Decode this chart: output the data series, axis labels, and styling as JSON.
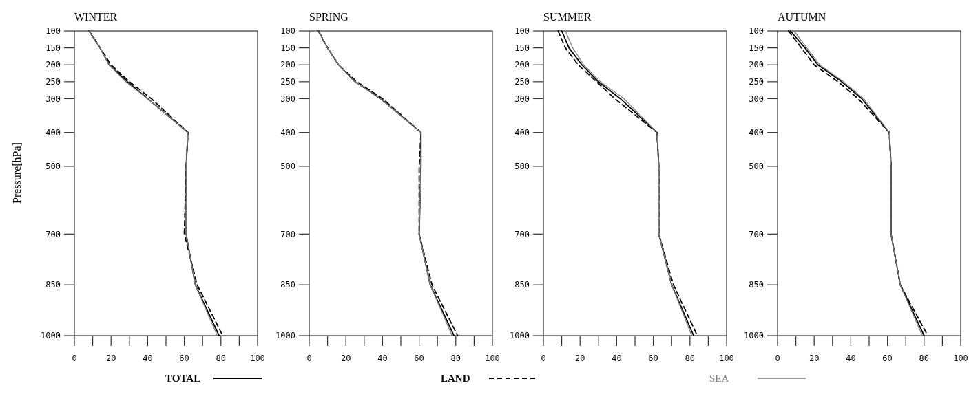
{
  "chart_data": [
    {
      "type": "line",
      "title": "WINTER",
      "ylabel": "Pressure[hPa]",
      "xlim": [
        0,
        100
      ],
      "ylim": [
        1000,
        100
      ],
      "xticks": [
        0,
        {
          "value": 10,
          "label": null
        },
        20,
        {
          "value": 30,
          "label": null
        },
        40,
        {
          "value": 50,
          "label": null
        },
        60,
        {
          "value": 70,
          "label": null
        },
        80,
        {
          "value": 90,
          "label": null
        },
        100
      ],
      "yticks": [
        100,
        150,
        200,
        250,
        300,
        400,
        500,
        700,
        850,
        1000
      ],
      "grid": false,
      "legend": "bottom",
      "marker": "none",
      "series": [
        {
          "name": "TOTAL",
          "color": "#000000",
          "line_style": "solid",
          "x": [
            8,
            14,
            19,
            29,
            40,
            62,
            61,
            61,
            66,
            79
          ],
          "values": [
            100,
            150,
            200,
            250,
            300,
            400,
            500,
            700,
            850,
            1000
          ]
        },
        {
          "name": "LAND",
          "color": "#000000",
          "line_style": "dashed",
          "x": [
            8,
            14,
            20,
            30,
            42,
            62,
            61,
            60,
            67,
            81
          ],
          "values": [
            100,
            150,
            200,
            250,
            300,
            400,
            500,
            700,
            850,
            1000
          ]
        },
        {
          "name": "SEA",
          "color": "#808080",
          "line_style": "solid",
          "x": [
            8,
            14,
            19,
            28,
            40,
            62,
            61,
            61,
            66,
            78
          ],
          "values": [
            100,
            150,
            200,
            250,
            300,
            400,
            500,
            700,
            850,
            1000
          ]
        }
      ]
    },
    {
      "type": "line",
      "title": "SPRING",
      "xlim": [
        0,
        100
      ],
      "ylim": [
        1000,
        100
      ],
      "xticks": [
        0,
        {
          "value": 10,
          "label": null
        },
        20,
        {
          "value": 30,
          "label": null
        },
        40,
        {
          "value": 50,
          "label": null
        },
        60,
        {
          "value": 70,
          "label": null
        },
        80,
        {
          "value": 90,
          "label": null
        },
        100
      ],
      "yticks": [
        100,
        150,
        200,
        250,
        300,
        400,
        500,
        700,
        850,
        1000
      ],
      "grid": false,
      "marker": "none",
      "series": [
        {
          "color": "#000000",
          "line_style": "solid",
          "x": [
            5,
            10,
            16,
            25,
            39,
            61,
            61,
            60,
            66,
            79
          ],
          "values": [
            100,
            150,
            200,
            250,
            300,
            400,
            500,
            700,
            850,
            1000
          ]
        },
        {
          "color": "#000000",
          "line_style": "dashed",
          "x": [
            5,
            10,
            16,
            26,
            40,
            61,
            60,
            60,
            67,
            81
          ],
          "values": [
            100,
            150,
            200,
            250,
            300,
            400,
            500,
            700,
            850,
            1000
          ]
        },
        {
          "color": "#808080",
          "line_style": "solid",
          "x": [
            5,
            10,
            16,
            25,
            39,
            61,
            61,
            60,
            66,
            78
          ],
          "values": [
            100,
            150,
            200,
            250,
            300,
            400,
            500,
            700,
            850,
            1000
          ]
        }
      ]
    },
    {
      "type": "line",
      "title": "SUMMER",
      "xlim": [
        0,
        100
      ],
      "ylim": [
        1000,
        100
      ],
      "xticks": [
        0,
        {
          "value": 10,
          "label": null
        },
        20,
        {
          "value": 30,
          "label": null
        },
        40,
        {
          "value": 50,
          "label": null
        },
        60,
        {
          "value": 70,
          "label": null
        },
        80,
        {
          "value": 90,
          "label": null
        },
        100
      ],
      "yticks": [
        100,
        150,
        200,
        250,
        300,
        400,
        500,
        700,
        850,
        1000
      ],
      "grid": false,
      "marker": "none",
      "series": [
        {
          "color": "#000000",
          "line_style": "solid",
          "x": [
            10,
            14,
            21,
            30,
            42,
            62,
            63,
            63,
            70,
            82
          ],
          "values": [
            100,
            150,
            200,
            250,
            300,
            400,
            500,
            700,
            850,
            1000
          ]
        },
        {
          "color": "#000000",
          "line_style": "dashed",
          "x": [
            8,
            12,
            19,
            29,
            39,
            62,
            63,
            63,
            71,
            84
          ],
          "values": [
            100,
            150,
            200,
            250,
            300,
            400,
            500,
            700,
            850,
            1000
          ]
        },
        {
          "color": "#808080",
          "line_style": "solid",
          "x": [
            12,
            16,
            22,
            31,
            44,
            62,
            63,
            63,
            70,
            81
          ],
          "values": [
            100,
            150,
            200,
            250,
            300,
            400,
            500,
            700,
            850,
            1000
          ]
        }
      ]
    },
    {
      "type": "line",
      "title": "AUTUMN",
      "xlim": [
        0,
        100
      ],
      "ylim": [
        1000,
        100
      ],
      "xticks": [
        0,
        {
          "value": 10,
          "label": null
        },
        20,
        {
          "value": 30,
          "label": null
        },
        40,
        {
          "value": 50,
          "label": null
        },
        60,
        {
          "value": 70,
          "label": null
        },
        80,
        {
          "value": 90,
          "label": null
        },
        100
      ],
      "yticks": [
        100,
        150,
        200,
        250,
        300,
        400,
        500,
        700,
        850,
        1000
      ],
      "grid": false,
      "marker": "none",
      "series": [
        {
          "color": "#000000",
          "line_style": "solid",
          "x": [
            7,
            15,
            22,
            35,
            46,
            61,
            62,
            62,
            67,
            80
          ],
          "values": [
            100,
            150,
            200,
            250,
            300,
            400,
            500,
            700,
            850,
            1000
          ]
        },
        {
          "color": "#000000",
          "line_style": "dashed",
          "x": [
            6,
            13,
            20,
            33,
            44,
            61,
            62,
            62,
            67,
            82
          ],
          "values": [
            100,
            150,
            200,
            250,
            300,
            400,
            500,
            700,
            850,
            1000
          ]
        },
        {
          "color": "#808080",
          "line_style": "solid",
          "x": [
            9,
            16,
            23,
            36,
            47,
            61,
            62,
            62,
            67,
            79
          ],
          "values": [
            100,
            150,
            200,
            250,
            300,
            400,
            500,
            700,
            850,
            1000
          ]
        }
      ]
    }
  ]
}
